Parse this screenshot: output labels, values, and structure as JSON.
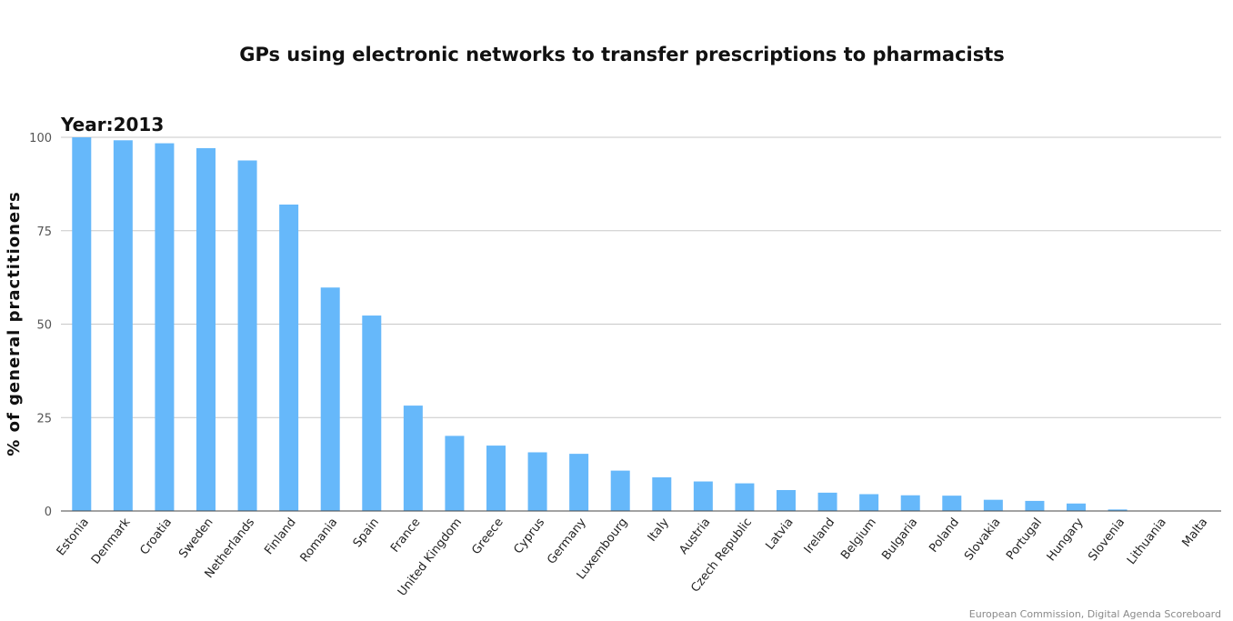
{
  "chart_data": {
    "type": "bar",
    "title": "GPs using electronic networks to transfer prescriptions to pharmacists",
    "subtitle": "Year:2013",
    "xlabel": "",
    "ylabel": "% of general practitioners",
    "ylim": [
      0,
      100
    ],
    "yticks": [
      0,
      25,
      50,
      75,
      100
    ],
    "grid": true,
    "categories": [
      "Estonia",
      "Denmark",
      "Croatia",
      "Sweden",
      "Netherlands",
      "Finland",
      "Romania",
      "Spain",
      "France",
      "United Kingdom",
      "Greece",
      "Cyprus",
      "Germany",
      "Luxembourg",
      "Italy",
      "Austria",
      "Czech Republic",
      "Latvia",
      "Ireland",
      "Belgium",
      "Bulgaria",
      "Poland",
      "Slovakia",
      "Portugal",
      "Hungary",
      "Slovenia",
      "Lithuania",
      "Malta"
    ],
    "values": [
      100,
      99.2,
      98.4,
      97.1,
      93.8,
      82,
      59.8,
      52.3,
      28.2,
      20.1,
      17.5,
      15.7,
      15.3,
      10.8,
      9,
      7.9,
      7.4,
      5.6,
      4.9,
      4.5,
      4.2,
      4.1,
      3,
      2.7,
      2,
      0.4,
      0,
      0
    ],
    "bar_color": "#66b8fa",
    "credit": "European Commission, Digital Agenda Scoreboard"
  }
}
